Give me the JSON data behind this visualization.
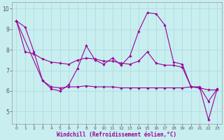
{
  "xlabel": "Windchill (Refroidissement éolien,°C)",
  "bg_color": "#c8eef0",
  "grid_color": "#b0dde0",
  "line_color": "#990099",
  "xlim": [
    -0.5,
    23.5
  ],
  "ylim": [
    4.4,
    10.3
  ],
  "yticks": [
    5,
    6,
    7,
    8,
    9,
    10
  ],
  "xticks": [
    0,
    1,
    2,
    3,
    4,
    5,
    6,
    7,
    8,
    9,
    10,
    11,
    12,
    13,
    14,
    15,
    16,
    17,
    18,
    19,
    20,
    21,
    22,
    23
  ],
  "series": [
    {
      "x": [
        0,
        1,
        2,
        3,
        4,
        5,
        6,
        7,
        8,
        9,
        10,
        11,
        12,
        13,
        14,
        15,
        16,
        17,
        18,
        19,
        20,
        21,
        22,
        23
      ],
      "y": [
        9.4,
        9.1,
        7.9,
        6.5,
        6.1,
        6.0,
        6.3,
        7.1,
        8.2,
        7.5,
        7.3,
        7.6,
        7.25,
        7.7,
        8.9,
        9.8,
        9.75,
        9.2,
        7.4,
        7.3,
        6.2,
        6.2,
        5.5,
        6.1
      ]
    },
    {
      "x": [
        0,
        1,
        2,
        3,
        4,
        5,
        6,
        7,
        8,
        9,
        10,
        11,
        12,
        13,
        14,
        15,
        16,
        17,
        18,
        19,
        20,
        21,
        22,
        23
      ],
      "y": [
        9.4,
        7.9,
        7.8,
        7.55,
        7.4,
        7.35,
        7.3,
        7.5,
        7.6,
        7.55,
        7.45,
        7.45,
        7.35,
        7.3,
        7.45,
        7.9,
        7.35,
        7.25,
        7.25,
        7.15,
        6.2,
        6.15,
        6.05,
        6.05
      ]
    },
    {
      "x": [
        0,
        3,
        4,
        5,
        6,
        7,
        8,
        9,
        10,
        11,
        12,
        13,
        14,
        15,
        16,
        17,
        18,
        19,
        20,
        21,
        22,
        23
      ],
      "y": [
        9.4,
        6.5,
        6.2,
        6.15,
        6.2,
        6.2,
        6.25,
        6.2,
        6.2,
        6.2,
        6.15,
        6.15,
        6.15,
        6.15,
        6.15,
        6.15,
        6.15,
        6.15,
        6.2,
        6.15,
        4.6,
        6.1
      ]
    }
  ]
}
